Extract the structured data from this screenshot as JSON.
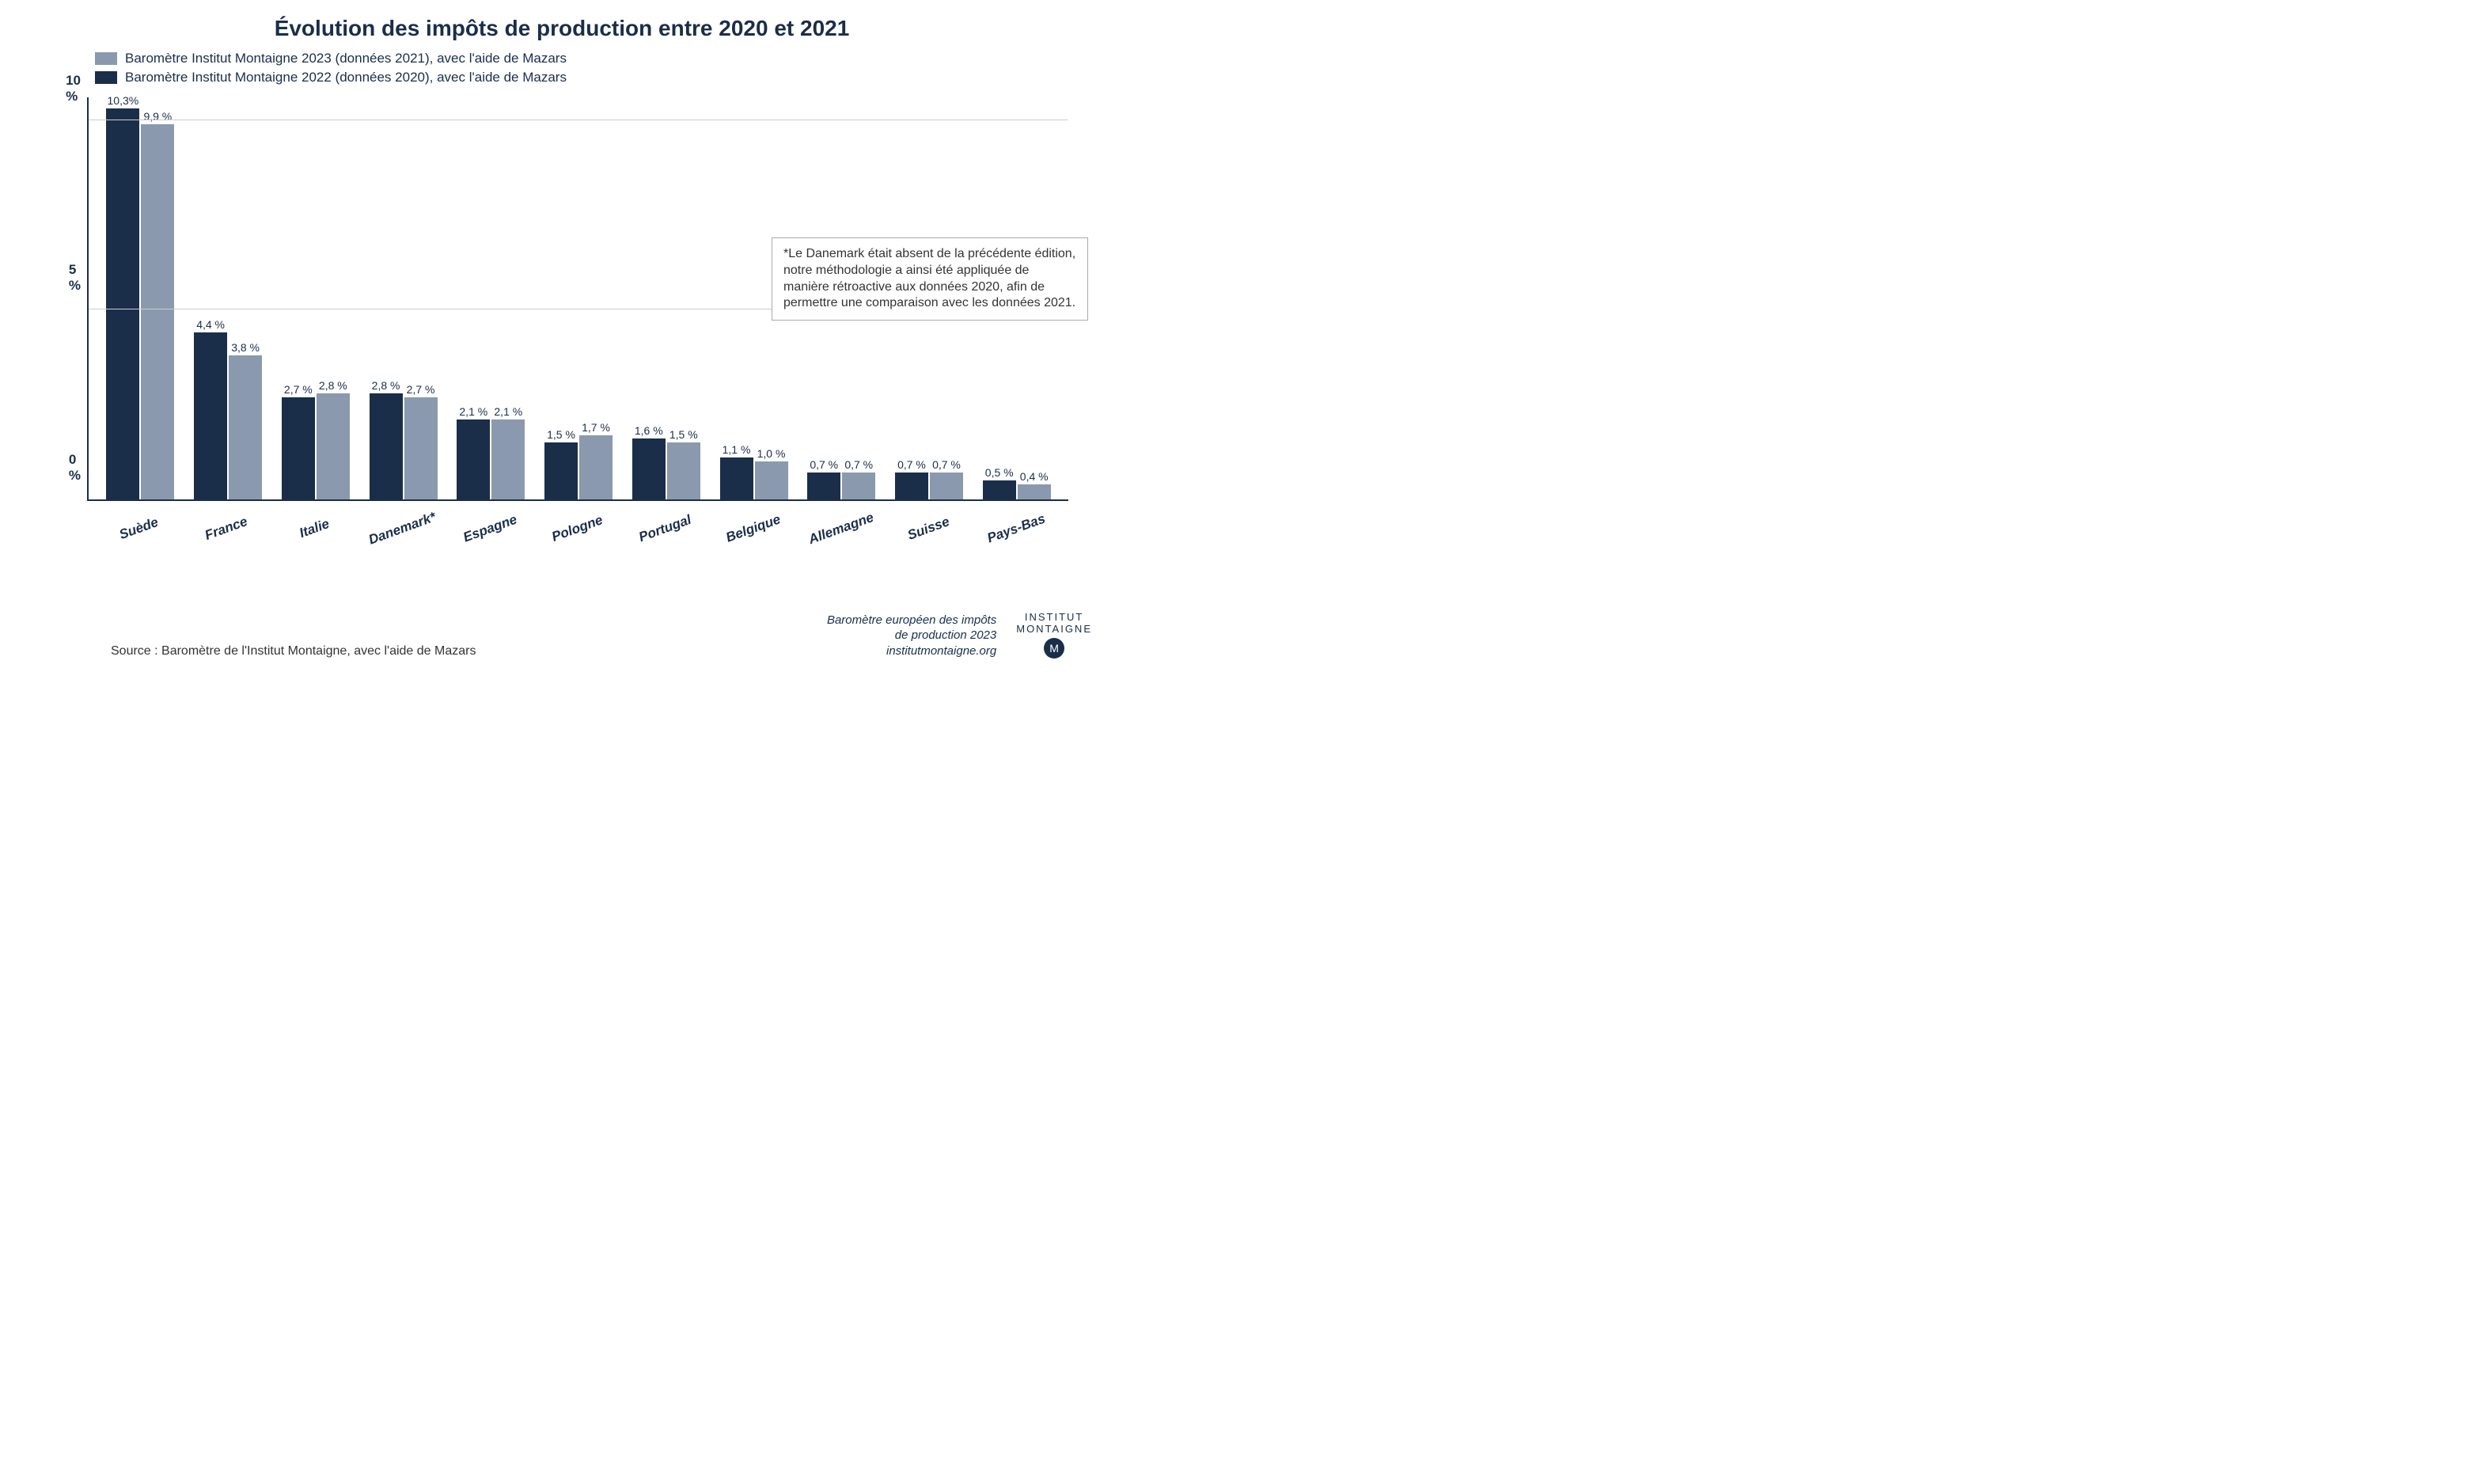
{
  "title": "Évolution des impôts de production entre 2020 et 2021",
  "legend": {
    "series1": {
      "label": "Baromètre Institut Montaigne  2023 (données 2021), avec l'aide de Mazars",
      "color": "#8a99ad"
    },
    "series2": {
      "label": "Baromètre Institut Montaigne  2022 (données 2020), avec l'aide de Mazars",
      "color": "#1a2e4a"
    }
  },
  "chart": {
    "type": "bar",
    "y_axis": {
      "min": 0,
      "max": 10.6,
      "ticks": [
        {
          "value": 0,
          "label": "0 %"
        },
        {
          "value": 5,
          "label": "5 %"
        },
        {
          "value": 10,
          "label": "10 %"
        }
      ]
    },
    "categories": [
      {
        "name": "Suède",
        "s2": {
          "v": 10.3,
          "label": "10,3%"
        },
        "s1": {
          "v": 9.9,
          "label": "9,9 %"
        }
      },
      {
        "name": "France",
        "s2": {
          "v": 4.4,
          "label": "4,4 %"
        },
        "s1": {
          "v": 3.8,
          "label": "3,8 %"
        }
      },
      {
        "name": "Italie",
        "s2": {
          "v": 2.7,
          "label": "2,7 %"
        },
        "s1": {
          "v": 2.8,
          "label": "2,8 %"
        }
      },
      {
        "name": "Danemark*",
        "s2": {
          "v": 2.8,
          "label": "2,8 %"
        },
        "s1": {
          "v": 2.7,
          "label": "2,7 %"
        }
      },
      {
        "name": "Espagne",
        "s2": {
          "v": 2.1,
          "label": "2,1 %"
        },
        "s1": {
          "v": 2.1,
          "label": "2,1 %"
        }
      },
      {
        "name": "Pologne",
        "s2": {
          "v": 1.5,
          "label": "1,5 %"
        },
        "s1": {
          "v": 1.7,
          "label": "1,7 %"
        }
      },
      {
        "name": "Portugal",
        "s2": {
          "v": 1.6,
          "label": "1,6 %"
        },
        "s1": {
          "v": 1.5,
          "label": "1,5 %"
        }
      },
      {
        "name": "Belgique",
        "s2": {
          "v": 1.1,
          "label": "1,1 %"
        },
        "s1": {
          "v": 1.0,
          "label": "1,0 %"
        }
      },
      {
        "name": "Allemagne",
        "s2": {
          "v": 0.7,
          "label": "0,7 %"
        },
        "s1": {
          "v": 0.7,
          "label": "0,7 %"
        }
      },
      {
        "name": "Suisse",
        "s2": {
          "v": 0.7,
          "label": "0,7 %"
        },
        "s1": {
          "v": 0.7,
          "label": "0,7 %"
        }
      },
      {
        "name": "Pays-Bas",
        "s2": {
          "v": 0.5,
          "label": "0,5 %"
        },
        "s1": {
          "v": 0.4,
          "label": "0,4 %"
        }
      }
    ],
    "colors": {
      "series1": "#8a99ad",
      "series2": "#1a2e4a",
      "grid": "#cccccc",
      "axis": "#1a2e4a",
      "text": "#1a2e4a"
    },
    "bar_label_fontsize": 14,
    "axis_label_fontsize": 17,
    "x_label_fontsize": 17,
    "x_label_rotation_deg": -20
  },
  "note": "*Le Danemark était absent de la précédente édition, notre méthodologie a ainsi été appliquée de manière rétroactive aux données 2020, afin de permettre une comparaison avec les données 2021.",
  "source": "Source : Baromètre de l'Institut Montaigne, avec l'aide de Mazars",
  "attribution": {
    "line1": "Baromètre européen des impôts",
    "line2": "de production 2023",
    "line3": "institutmontaigne.org"
  },
  "logo": {
    "line1": "INSTITUT",
    "line2": "MONTAIGNE",
    "mark": "M"
  }
}
